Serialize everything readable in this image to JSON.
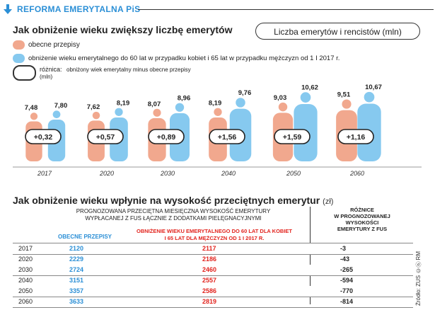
{
  "header": {
    "title": "REFORMA EMERYTALNA PiS"
  },
  "section1": {
    "title": "Jak obniżenie wieku zwiększy liczbę emerytów",
    "unit_label": "Liczba emerytów i rencistów (mln)"
  },
  "legend": {
    "current": "obecne przepisy",
    "lowered": "obniżenie wieku emerytalnego do 60 lat w przypadku kobiet i 65 lat w przypadku mężczyzn od 1 I 2017 r.",
    "diff_label": "różnica:",
    "diff_desc": "obniżony wiek emerytalny minus obecne przepisy",
    "diff_unit": "(mln)"
  },
  "colors": {
    "current": "#f1a88e",
    "lowered": "#86c9ef",
    "accent": "#2b8fd6",
    "red": "#e2241e"
  },
  "chart_data": {
    "type": "bar",
    "categories": [
      "2017",
      "2020",
      "2030",
      "2040",
      "2050",
      "2060"
    ],
    "series": [
      {
        "name": "obecne przepisy",
        "values": [
          7.48,
          7.62,
          8.07,
          8.19,
          9.03,
          9.51
        ]
      },
      {
        "name": "obniżenie wieku emerytalnego",
        "values": [
          7.8,
          8.19,
          8.96,
          9.76,
          10.62,
          10.67
        ]
      }
    ],
    "value_labels_current": [
      "7,48",
      "7,62",
      "8,07",
      "8,19",
      "9,03",
      "9,51"
    ],
    "value_labels_lowered": [
      "7,80",
      "8,19",
      "8,96",
      "9,76",
      "10,62",
      "10,67"
    ],
    "differences": [
      "+0,32",
      "+0,57",
      "+0,89",
      "+1,56",
      "+1,59",
      "+1,16"
    ],
    "ylabel": "Liczba emerytów i rencistów (mln)"
  },
  "section2": {
    "title": "Jak obniżenie wieku wpłynie na wysokość przeciętnych emerytur",
    "unit": "(zł)",
    "caption_line1": "PROGNOZOWANA PRZECIĘTNA MIESIĘCZNA WYSOKOŚĆ EMERYTURY",
    "caption_line2": "WYPŁACANEJ Z FUS ŁĄCZNIE Z DODATKAMI PIELĘGNACYJNYMI",
    "col_current": "OBECNE PRZEPISY",
    "col_lowered_line1": "OBNIŻENIE WIEKU EMERYTALNEGO DO 60 LAT DLA KOBIET",
    "col_lowered_line2": "I 65 LAT DLA MĘŻCZYZN OD 1 I 2017 R.",
    "col_diff_line1": "RÓŻNICE",
    "col_diff_line2": "W PROGNOZOWANEJ",
    "col_diff_line3": "WYSOKOŚCI",
    "col_diff_line4": "EMERYTURY Z FUS",
    "rows": [
      {
        "year": "2017",
        "current": "2120",
        "lowered": "2117",
        "diff": "-3"
      },
      {
        "year": "2020",
        "current": "2229",
        "lowered": "2186",
        "diff": "-43"
      },
      {
        "year": "2030",
        "current": "2724",
        "lowered": "2460",
        "diff": "-265"
      },
      {
        "year": "2040",
        "current": "3151",
        "lowered": "2557",
        "diff": "-594"
      },
      {
        "year": "2050",
        "current": "3357",
        "lowered": "2586",
        "diff": "-770"
      },
      {
        "year": "2060",
        "current": "3633",
        "lowered": "2819",
        "diff": "-814"
      }
    ]
  },
  "source": "Źródło: ZUS ©ⓟ RM"
}
